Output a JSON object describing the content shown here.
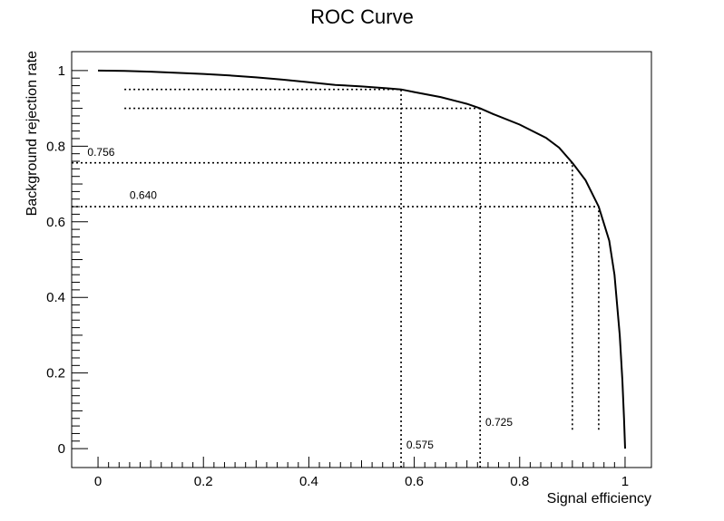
{
  "chart_data": {
    "type": "line",
    "title": "ROC Curve",
    "xlabel": "Signal efficiency",
    "ylabel": "Background rejection rate",
    "xlim": [
      -0.05,
      1.05
    ],
    "ylim": [
      -0.05,
      1.05
    ],
    "grid": false,
    "legend": "none",
    "x_ticks": [
      {
        "value": 0,
        "label": "0"
      },
      {
        "value": 0.2,
        "label": "0.2"
      },
      {
        "value": 0.4,
        "label": "0.4"
      },
      {
        "value": 0.6,
        "label": "0.6"
      },
      {
        "value": 0.8,
        "label": "0.8"
      },
      {
        "value": 1,
        "label": "1"
      }
    ],
    "y_ticks": [
      {
        "value": 0,
        "label": "0"
      },
      {
        "value": 0.2,
        "label": "0.2"
      },
      {
        "value": 0.4,
        "label": "0.4"
      },
      {
        "value": 0.6,
        "label": "0.6"
      },
      {
        "value": 0.8,
        "label": "0.8"
      },
      {
        "value": 1,
        "label": "1"
      }
    ],
    "series": [
      {
        "x": [
          0,
          0.05,
          0.1,
          0.15,
          0.2,
          0.25,
          0.3,
          0.35,
          0.4,
          0.45,
          0.5,
          0.55,
          0.575,
          0.6,
          0.65,
          0.7,
          0.725,
          0.75,
          0.8,
          0.85,
          0.875,
          0.9,
          0.925,
          0.95,
          0.97,
          0.98,
          0.99,
          0.995,
          0.998,
          1.0
        ],
        "y": [
          1.0,
          0.999,
          0.997,
          0.994,
          0.991,
          0.987,
          0.982,
          0.976,
          0.969,
          0.962,
          0.958,
          0.953,
          0.95,
          0.943,
          0.93,
          0.912,
          0.9,
          0.885,
          0.857,
          0.822,
          0.796,
          0.756,
          0.71,
          0.64,
          0.55,
          0.46,
          0.3,
          0.18,
          0.08,
          0.0
        ]
      }
    ],
    "reference_lines": [
      {
        "x_from": 0.05,
        "x_to": 0.575,
        "y": 0.95
      },
      {
        "x_from": 0.05,
        "x_to": 0.725,
        "y": 0.9
      },
      {
        "x_from": -0.05,
        "x_to": 0.9,
        "y": 0.756
      },
      {
        "x_from": -0.05,
        "x_to": 0.95,
        "y": 0.64
      },
      {
        "x": 0.575,
        "y_from": -0.05,
        "y_to": 0.95
      },
      {
        "x": 0.725,
        "y_from": -0.05,
        "y_to": 0.9
      },
      {
        "x": 0.9,
        "y_from": 0.05,
        "y_to": 0.756
      },
      {
        "x": 0.95,
        "y_from": 0.05,
        "y_to": 0.64
      }
    ],
    "annotations": [
      {
        "text": "0.756",
        "x": -0.02,
        "y": 0.775
      },
      {
        "text": "0.640",
        "x": 0.06,
        "y": 0.66
      },
      {
        "text": "0.575",
        "x": 0.585,
        "y": 0.0
      },
      {
        "text": "0.725",
        "x": 0.735,
        "y": 0.06
      }
    ]
  }
}
